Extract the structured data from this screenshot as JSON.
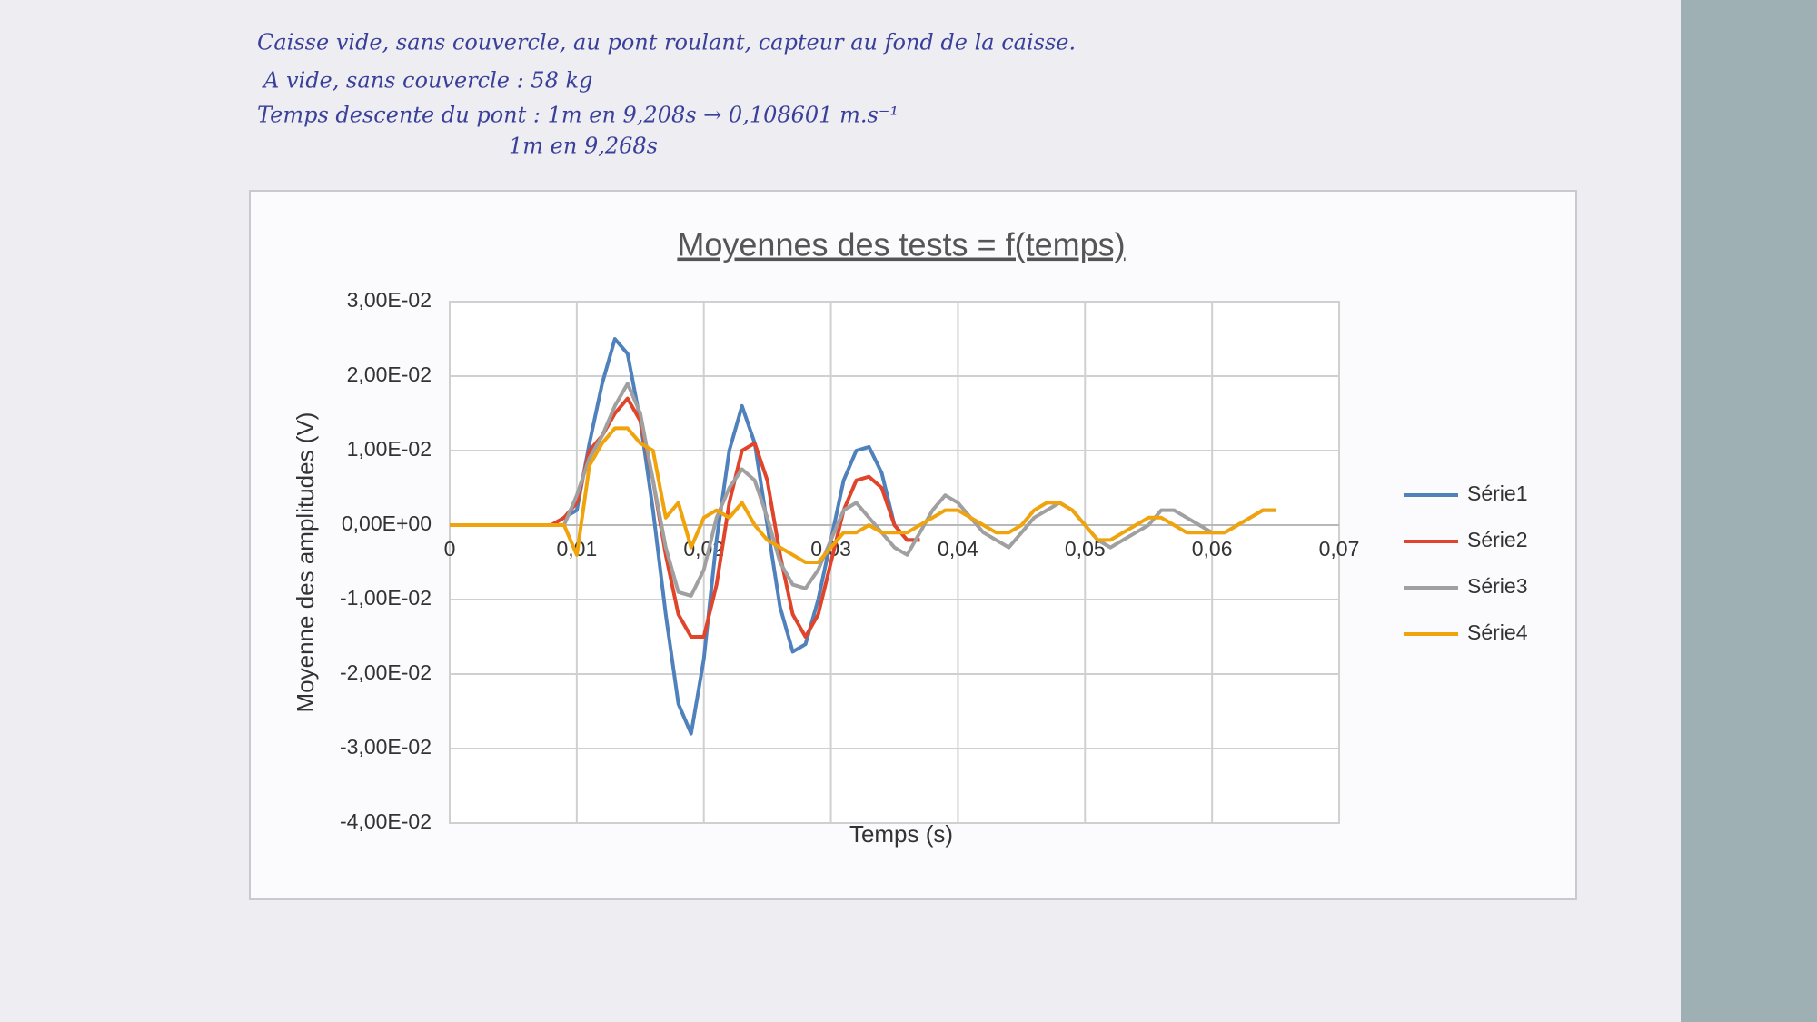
{
  "chart_data": {
    "type": "line",
    "title": "Moyennes des tests = f(temps)",
    "xlabel": "Temps (s)",
    "ylabel": "Moyenne des amplitudes (V)",
    "annotations": [
      "Caisse vide, sans couvercle, au pont roulant, capteur au fond de la caisse.",
      "A vide, sans couvercle : 58 kg",
      "Temps descente du pont : 1m en 9,208s → 0,108601 m.s⁻¹",
      "1m en 9,268s"
    ],
    "x": [
      0,
      0.001,
      0.002,
      0.003,
      0.004,
      0.005,
      0.006,
      0.007,
      0.008,
      0.009,
      0.01,
      0.011,
      0.012,
      0.013,
      0.014,
      0.015,
      0.016,
      0.017,
      0.018,
      0.019,
      0.02,
      0.021,
      0.022,
      0.023,
      0.024,
      0.025,
      0.026,
      0.027,
      0.028,
      0.029,
      0.03,
      0.031,
      0.032,
      0.033,
      0.034,
      0.035,
      0.036,
      0.037,
      0.038,
      0.039,
      0.04,
      0.041,
      0.042,
      0.043,
      0.044,
      0.045,
      0.046,
      0.047,
      0.048,
      0.049,
      0.05,
      0.051,
      0.052,
      0.053,
      0.054,
      0.055,
      0.056,
      0.057,
      0.058,
      0.059,
      0.06,
      0.061,
      0.062,
      0.063,
      0.064,
      0.065
    ],
    "series": [
      {
        "name": "Série1",
        "color": "#4f81bd",
        "values": [
          0,
          0,
          0,
          0,
          0,
          0,
          0,
          0,
          0,
          0.001,
          0.002,
          0.011,
          0.019,
          0.025,
          0.023,
          0.014,
          0.002,
          -0.012,
          -0.024,
          -0.028,
          -0.018,
          -0.002,
          0.01,
          0.016,
          0.011,
          0,
          -0.011,
          -0.017,
          -0.016,
          -0.01,
          -0.002,
          0.006,
          0.01,
          0.0105,
          0.007,
          0,
          -0.002,
          -0.002,
          null,
          null,
          null,
          null,
          null,
          null,
          null,
          null,
          null,
          null,
          null,
          null,
          null,
          null,
          null,
          null,
          null,
          null,
          null,
          null,
          null,
          null,
          null,
          null,
          null,
          null,
          null,
          null
        ]
      },
      {
        "name": "Série2",
        "color": "#e0452b",
        "values": [
          0,
          0,
          0,
          0,
          0,
          0,
          0,
          0,
          0,
          0.001,
          0.003,
          0.01,
          0.012,
          0.015,
          0.017,
          0.014,
          0.006,
          -0.004,
          -0.012,
          -0.015,
          -0.015,
          -0.008,
          0.003,
          0.01,
          0.011,
          0.006,
          -0.004,
          -0.012,
          -0.015,
          -0.012,
          -0.005,
          0.002,
          0.006,
          0.0065,
          0.005,
          0,
          -0.002,
          -0.002,
          null,
          null,
          null,
          null,
          null,
          null,
          null,
          null,
          null,
          null,
          null,
          null,
          null,
          null,
          null,
          null,
          null,
          null,
          null,
          null,
          null,
          null,
          null,
          null,
          null,
          null,
          null,
          null
        ]
      },
      {
        "name": "Série3",
        "color": "#a0a0a0",
        "values": [
          0,
          0,
          0,
          0,
          0,
          0,
          0,
          0,
          0,
          0,
          0.004,
          0.009,
          0.012,
          0.016,
          0.019,
          0.015,
          0.006,
          -0.003,
          -0.009,
          -0.0095,
          -0.006,
          0.001,
          0.005,
          0.0075,
          0.006,
          0.001,
          -0.005,
          -0.008,
          -0.0085,
          -0.006,
          -0.002,
          0.002,
          0.003,
          0.001,
          -0.001,
          -0.003,
          -0.004,
          -0.001,
          0.002,
          0.004,
          0.003,
          0.001,
          -0.001,
          -0.002,
          -0.003,
          -0.001,
          0.001,
          0.002,
          0.003,
          0.002,
          0,
          -0.002,
          -0.003,
          -0.002,
          -0.001,
          0,
          0.002,
          0.002,
          0.001,
          0,
          -0.001,
          -0.001,
          0,
          0.001,
          0.002,
          0.002
        ]
      },
      {
        "name": "Série4",
        "color": "#f0a30a",
        "values": [
          0,
          0,
          0,
          0,
          0,
          0,
          0,
          0,
          0,
          0,
          -0.004,
          0.008,
          0.011,
          0.013,
          0.013,
          0.011,
          0.01,
          0.001,
          0.003,
          -0.003,
          0.001,
          0.002,
          0.001,
          0.003,
          0,
          -0.002,
          -0.003,
          -0.004,
          -0.005,
          -0.005,
          -0.003,
          -0.001,
          -0.001,
          0,
          -0.001,
          -0.001,
          -0.001,
          0,
          0.001,
          0.002,
          0.002,
          0.001,
          0,
          -0.001,
          -0.001,
          0,
          0.002,
          0.003,
          0.003,
          0.002,
          0,
          -0.002,
          -0.002,
          -0.001,
          0,
          0.001,
          0.001,
          0,
          -0.001,
          -0.001,
          -0.001,
          -0.001,
          0,
          0.001,
          0.002,
          0.002
        ]
      }
    ],
    "xlim": [
      0,
      0.07
    ],
    "xticks": [
      0,
      {
        "value": 0.01,
        "label": "0,01"
      },
      {
        "value": 0.02,
        "label": "0,02"
      },
      {
        "value": 0.03,
        "label": "0,03"
      },
      {
        "value": 0.04,
        "label": "0,04"
      },
      {
        "value": 0.05,
        "label": "0,05"
      },
      {
        "value": 0.06,
        "label": "0,06"
      },
      {
        "value": 0.07,
        "label": "0,07"
      }
    ],
    "ylim": [
      -0.04,
      0.03
    ],
    "yticks": [
      {
        "value": -0.04,
        "label": "-4,00E-02"
      },
      {
        "value": -0.03,
        "label": "-3,00E-02"
      },
      {
        "value": -0.02,
        "label": "-2,00E-02"
      },
      {
        "value": -0.01,
        "label": "-1,00E-02"
      },
      {
        "value": 0,
        "label": "0,00E+00"
      },
      {
        "value": 0.01,
        "label": "1,00E-02"
      },
      {
        "value": 0.02,
        "label": "2,00E-02"
      },
      {
        "value": 0.03,
        "label": "3,00E-02"
      }
    ],
    "grid": true,
    "legend": "right"
  }
}
